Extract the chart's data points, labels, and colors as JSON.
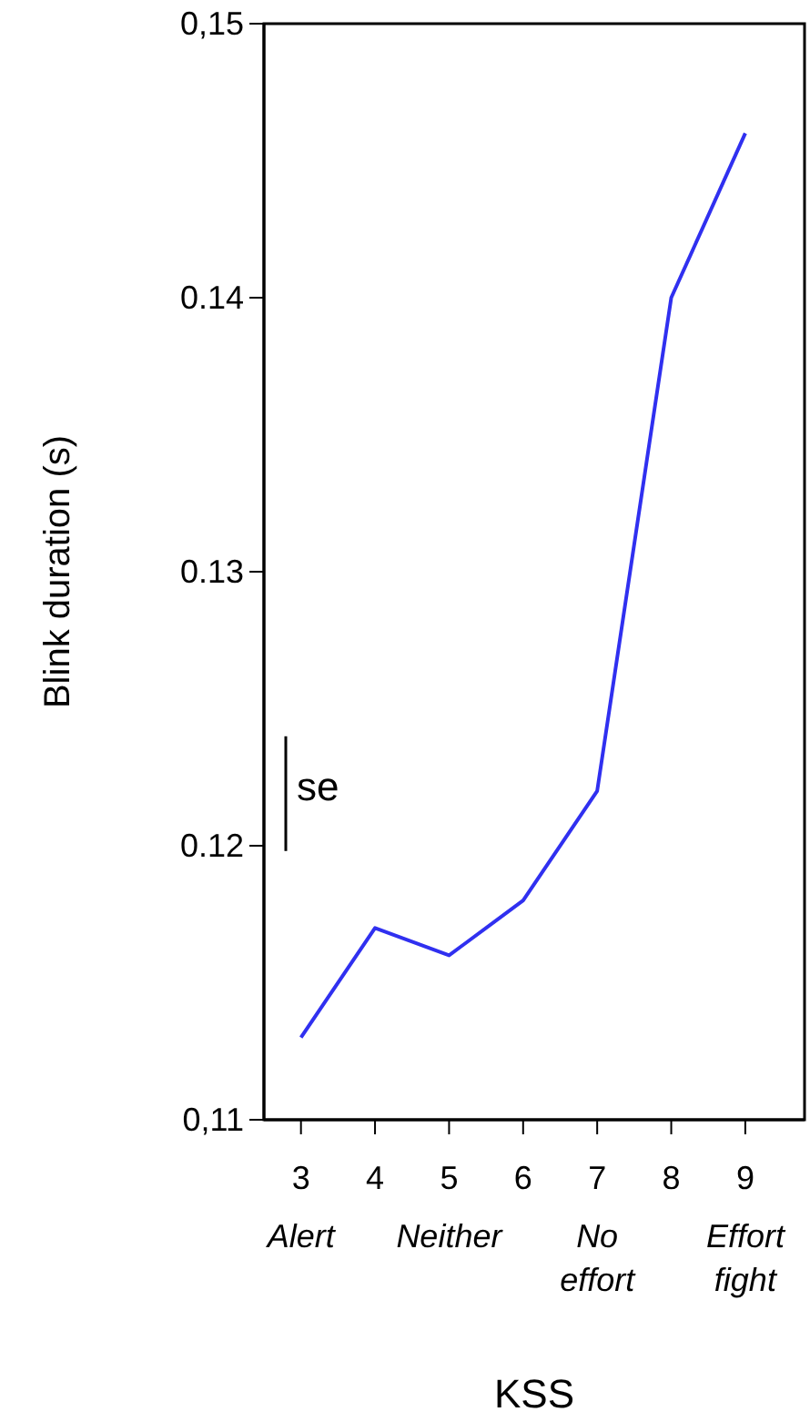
{
  "chart_data": {
    "type": "line",
    "xlabel": "KSS",
    "ylabel": "Blink duration (s)",
    "categories": [
      "3\nAlert",
      "4",
      "5\nNeither",
      "6",
      "7\nNo effort",
      "8",
      "9\nEffort fight"
    ],
    "series": [
      {
        "color": "#3030f0",
        "values": [
          0.113,
          0.117,
          0.116,
          0.118,
          0.122,
          0.14,
          0.146
        ]
      }
    ],
    "ylim": [
      0.11,
      0.15
    ],
    "yticks": [
      {
        "value": 0.11,
        "label": "0,11"
      },
      {
        "value": 0.12,
        "label": "0.12"
      },
      {
        "value": 0.13,
        "label": "0.13"
      },
      {
        "value": 0.14,
        "label": "0.14"
      },
      {
        "value": 0.15,
        "label": "0,15"
      }
    ],
    "annotations": [
      "se"
    ],
    "grid": false,
    "marker": "none",
    "line_style": "solid"
  }
}
